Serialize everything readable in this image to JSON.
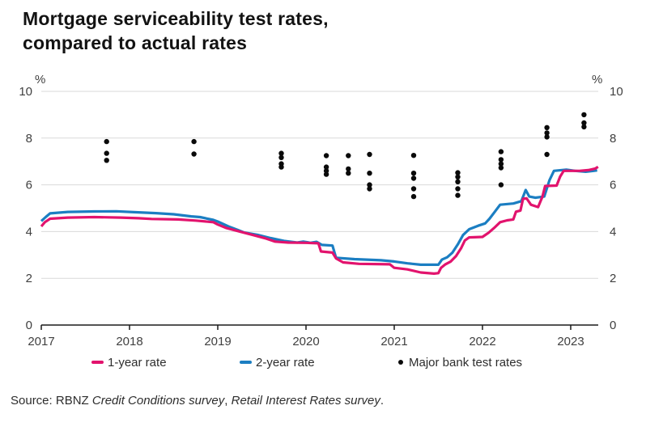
{
  "title": {
    "line1": "Mortgage serviceability test rates,",
    "line2": "compared to actual rates"
  },
  "legend": {
    "items": [
      {
        "label": "1-year rate",
        "marker": "line",
        "color": "#e2136d"
      },
      {
        "label": "2-year rate",
        "marker": "line",
        "color": "#1b7ec2"
      },
      {
        "label": "Major bank test rates",
        "marker": "dot",
        "color": "#0a0a0a"
      }
    ]
  },
  "source": {
    "label": "Source: RBNZ ",
    "italic_1": "Credit Conditions survey",
    "separator": ", ",
    "italic_2": "Retail Interest Rates survey",
    "terminator": "."
  },
  "chart_data": {
    "type": "line",
    "title": "Mortgage serviceability test rates, compared to actual rates",
    "grid": true,
    "y_axis": {
      "unit_left": "%",
      "unit_right": "%",
      "ticks": [
        0,
        2,
        4,
        6,
        8,
        10
      ],
      "range": [
        0,
        10
      ]
    },
    "x_axis": {
      "ticks": [
        2017,
        2018,
        2019,
        2020,
        2021,
        2022,
        2023
      ],
      "range": [
        2017,
        2023.31
      ]
    },
    "series": [
      {
        "name": "1-year rate",
        "color": "#e2136d",
        "points": [
          [
            2017.0,
            4.22
          ],
          [
            2017.04,
            4.4
          ],
          [
            2017.1,
            4.55
          ],
          [
            2017.3,
            4.6
          ],
          [
            2017.6,
            4.62
          ],
          [
            2017.9,
            4.6
          ],
          [
            2018.1,
            4.57
          ],
          [
            2018.25,
            4.54
          ],
          [
            2018.55,
            4.52
          ],
          [
            2018.75,
            4.47
          ],
          [
            2018.95,
            4.4
          ],
          [
            2019.0,
            4.3
          ],
          [
            2019.1,
            4.15
          ],
          [
            2019.25,
            4.0
          ],
          [
            2019.4,
            3.85
          ],
          [
            2019.55,
            3.7
          ],
          [
            2019.65,
            3.57
          ],
          [
            2019.8,
            3.53
          ],
          [
            2020.0,
            3.52
          ],
          [
            2020.14,
            3.5
          ],
          [
            2020.17,
            3.15
          ],
          [
            2020.3,
            3.1
          ],
          [
            2020.34,
            2.85
          ],
          [
            2020.42,
            2.68
          ],
          [
            2020.6,
            2.62
          ],
          [
            2020.95,
            2.6
          ],
          [
            2021.0,
            2.45
          ],
          [
            2021.15,
            2.38
          ],
          [
            2021.3,
            2.25
          ],
          [
            2021.45,
            2.2
          ],
          [
            2021.5,
            2.22
          ],
          [
            2021.53,
            2.45
          ],
          [
            2021.58,
            2.6
          ],
          [
            2021.64,
            2.72
          ],
          [
            2021.7,
            2.95
          ],
          [
            2021.76,
            3.3
          ],
          [
            2021.8,
            3.62
          ],
          [
            2021.85,
            3.75
          ],
          [
            2022.0,
            3.77
          ],
          [
            2022.07,
            3.95
          ],
          [
            2022.13,
            4.15
          ],
          [
            2022.2,
            4.4
          ],
          [
            2022.28,
            4.48
          ],
          [
            2022.35,
            4.52
          ],
          [
            2022.38,
            4.85
          ],
          [
            2022.43,
            4.9
          ],
          [
            2022.46,
            5.4
          ],
          [
            2022.5,
            5.42
          ],
          [
            2022.55,
            5.15
          ],
          [
            2022.63,
            5.05
          ],
          [
            2022.68,
            5.5
          ],
          [
            2022.71,
            5.95
          ],
          [
            2022.84,
            5.97
          ],
          [
            2022.88,
            6.35
          ],
          [
            2022.92,
            6.6
          ],
          [
            2023.1,
            6.6
          ],
          [
            2023.2,
            6.63
          ],
          [
            2023.28,
            6.7
          ],
          [
            2023.31,
            6.77
          ]
        ]
      },
      {
        "name": "2-year rate",
        "color": "#1b7ec2",
        "points": [
          [
            2017.0,
            4.45
          ],
          [
            2017.05,
            4.62
          ],
          [
            2017.1,
            4.78
          ],
          [
            2017.3,
            4.84
          ],
          [
            2017.6,
            4.86
          ],
          [
            2017.85,
            4.87
          ],
          [
            2018.05,
            4.83
          ],
          [
            2018.3,
            4.79
          ],
          [
            2018.5,
            4.74
          ],
          [
            2018.7,
            4.65
          ],
          [
            2018.8,
            4.62
          ],
          [
            2018.95,
            4.5
          ],
          [
            2019.0,
            4.43
          ],
          [
            2019.12,
            4.22
          ],
          [
            2019.22,
            4.08
          ],
          [
            2019.3,
            3.96
          ],
          [
            2019.45,
            3.86
          ],
          [
            2019.6,
            3.72
          ],
          [
            2019.75,
            3.6
          ],
          [
            2019.9,
            3.53
          ],
          [
            2019.97,
            3.57
          ],
          [
            2020.05,
            3.52
          ],
          [
            2020.12,
            3.56
          ],
          [
            2020.18,
            3.43
          ],
          [
            2020.3,
            3.4
          ],
          [
            2020.34,
            2.88
          ],
          [
            2020.55,
            2.82
          ],
          [
            2020.85,
            2.77
          ],
          [
            2021.0,
            2.72
          ],
          [
            2021.15,
            2.64
          ],
          [
            2021.3,
            2.58
          ],
          [
            2021.5,
            2.58
          ],
          [
            2021.54,
            2.8
          ],
          [
            2021.6,
            2.9
          ],
          [
            2021.66,
            3.1
          ],
          [
            2021.72,
            3.45
          ],
          [
            2021.78,
            3.85
          ],
          [
            2021.85,
            4.1
          ],
          [
            2021.95,
            4.25
          ],
          [
            2022.03,
            4.35
          ],
          [
            2022.08,
            4.55
          ],
          [
            2022.14,
            4.85
          ],
          [
            2022.2,
            5.15
          ],
          [
            2022.35,
            5.2
          ],
          [
            2022.44,
            5.3
          ],
          [
            2022.49,
            5.78
          ],
          [
            2022.53,
            5.5
          ],
          [
            2022.6,
            5.45
          ],
          [
            2022.7,
            5.5
          ],
          [
            2022.76,
            6.2
          ],
          [
            2022.81,
            6.6
          ],
          [
            2022.95,
            6.65
          ],
          [
            2023.05,
            6.6
          ],
          [
            2023.17,
            6.56
          ],
          [
            2023.26,
            6.6
          ],
          [
            2023.3,
            6.62
          ]
        ]
      }
    ],
    "scatter": {
      "name": "Major bank test rates",
      "color": "#0a0a0a",
      "clusters": [
        {
          "x": 2017.74,
          "values": [
            7.85,
            7.35,
            7.05
          ]
        },
        {
          "x": 2018.73,
          "values": [
            7.85,
            7.32
          ]
        },
        {
          "x": 2019.72,
          "values": [
            7.35,
            7.17,
            6.9,
            6.76
          ]
        },
        {
          "x": 2020.23,
          "values": [
            7.25,
            6.76,
            6.6,
            6.45
          ]
        },
        {
          "x": 2020.48,
          "values": [
            7.25,
            6.68,
            6.5
          ]
        },
        {
          "x": 2020.72,
          "values": [
            7.3,
            6.5,
            6.0,
            5.83
          ]
        },
        {
          "x": 2021.22,
          "values": [
            7.26,
            6.5,
            6.28,
            5.83,
            5.5
          ]
        },
        {
          "x": 2021.72,
          "values": [
            6.52,
            6.34,
            6.13,
            5.83,
            5.55
          ]
        },
        {
          "x": 2022.21,
          "values": [
            7.42,
            7.08,
            6.9,
            6.73,
            6.0
          ]
        },
        {
          "x": 2022.73,
          "values": [
            8.45,
            8.22,
            8.05,
            7.3
          ]
        },
        {
          "x": 2023.15,
          "values": [
            9.0,
            8.65,
            8.48
          ]
        }
      ]
    }
  }
}
